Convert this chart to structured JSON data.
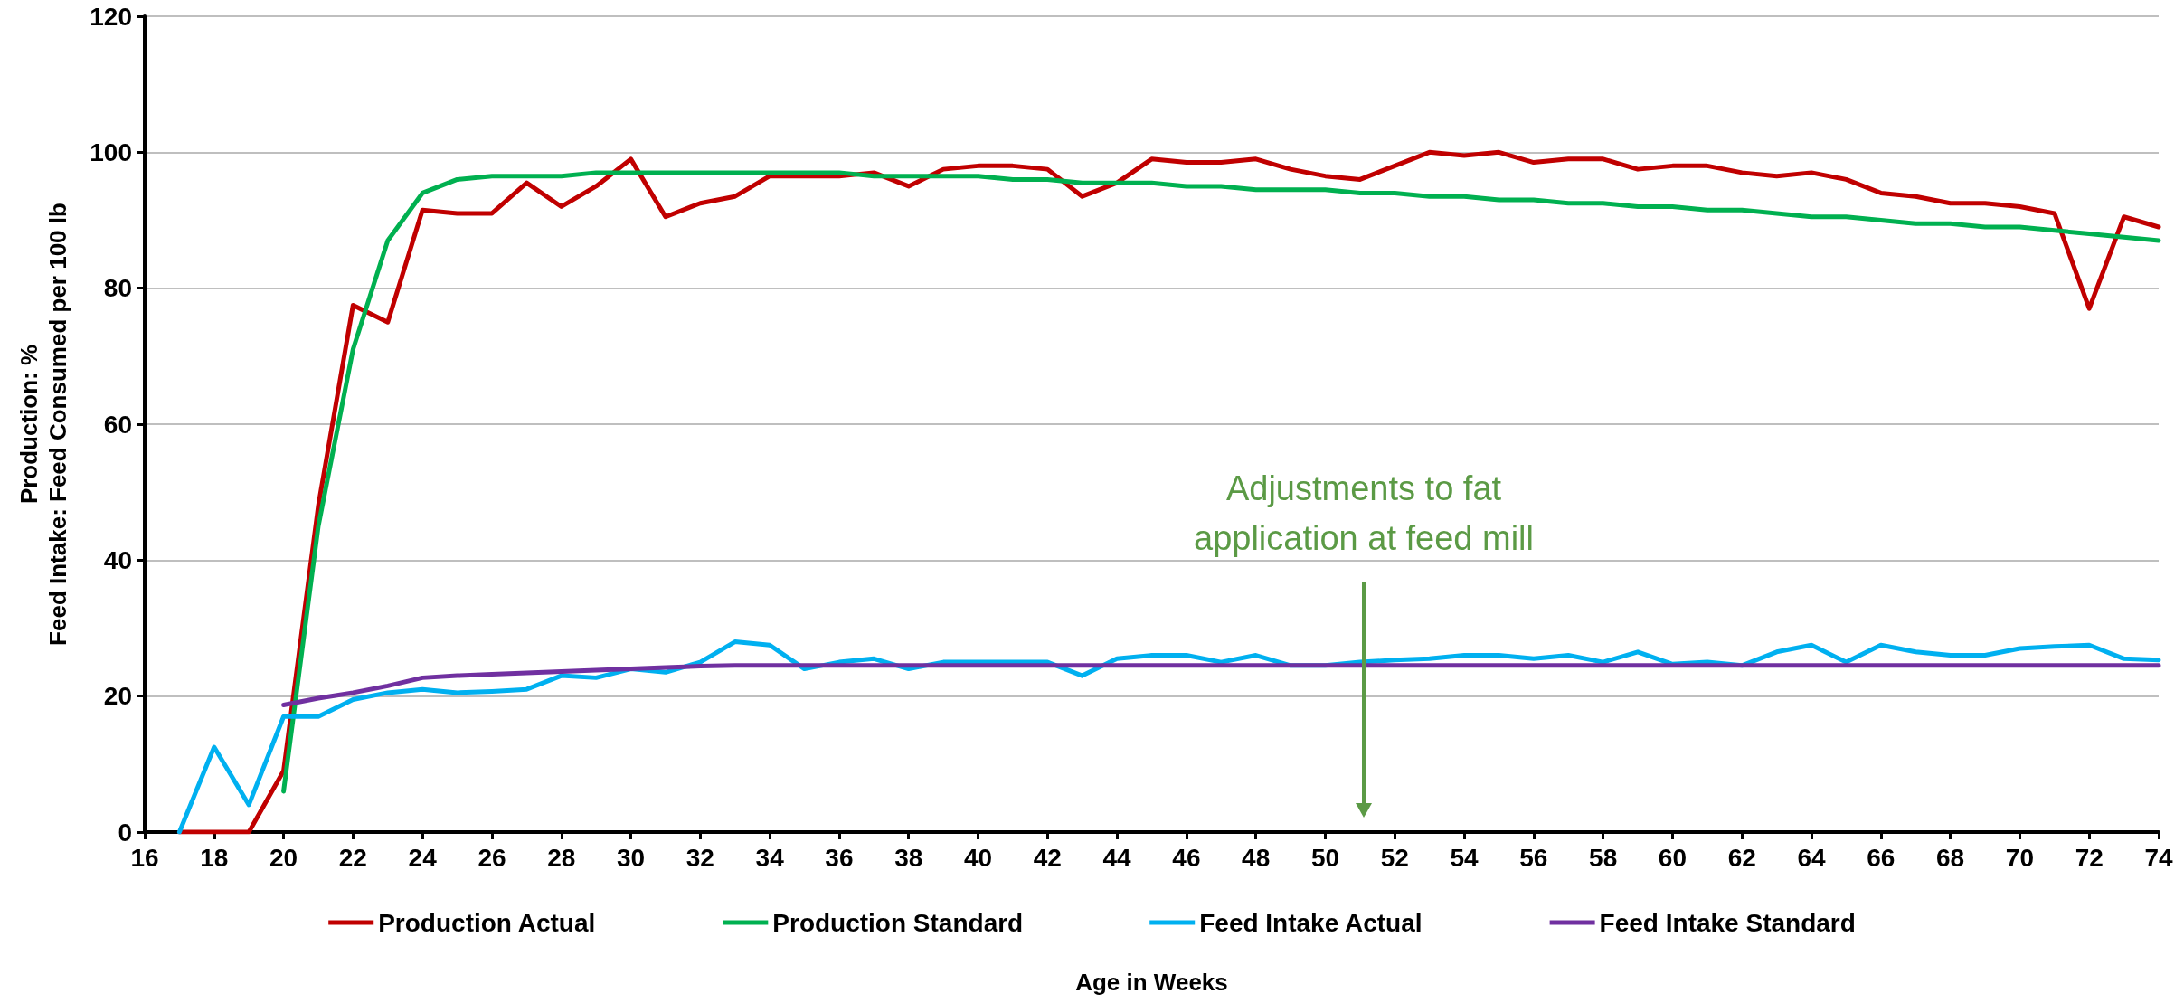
{
  "chart_data": {
    "type": "line",
    "xlabel": "Age in Weeks",
    "ylabel": "Production: %\nFeed Intake: Feed Consumed per 100 lb",
    "xlim": [
      16,
      74
    ],
    "xticks": [
      16,
      18,
      20,
      22,
      24,
      26,
      28,
      30,
      32,
      34,
      36,
      38,
      40,
      42,
      44,
      46,
      48,
      50,
      52,
      54,
      56,
      58,
      60,
      62,
      64,
      66,
      68,
      70,
      72,
      74
    ],
    "ylim": [
      0,
      120
    ],
    "yticks": [
      0,
      20,
      40,
      60,
      80,
      100,
      120
    ],
    "grid": "y",
    "legend": "bottom",
    "marker": "none",
    "line_style": "solid",
    "annotations": [
      "Adjustments to fat application at feed mill"
    ],
    "series": [
      {
        "name": "Production Actual",
        "color": "#c00000",
        "x": [
          17,
          18,
          19,
          20,
          21,
          22,
          23,
          24,
          25,
          26,
          27,
          28,
          29,
          30,
          31,
          32,
          33,
          34,
          35,
          36,
          37,
          38,
          39,
          40,
          41,
          42,
          43,
          44,
          45,
          46,
          47,
          48,
          49,
          50,
          51,
          52,
          53,
          54,
          55,
          56,
          57,
          58,
          59,
          60,
          61,
          62,
          63,
          64,
          65,
          66,
          67,
          68,
          69,
          70,
          71,
          72,
          73,
          74
        ],
        "values": [
          0,
          0,
          0,
          9,
          48,
          77.5,
          75,
          91.5,
          91,
          91,
          95.5,
          92,
          95,
          99,
          90.5,
          92.5,
          93.5,
          96.5,
          96.5,
          96.5,
          97,
          95,
          97.5,
          98,
          98,
          97.5,
          93.5,
          95.5,
          99,
          98.5,
          98.5,
          99,
          97.5,
          96.5,
          96,
          98,
          100,
          99.5,
          100,
          98.5,
          99,
          99,
          97.5,
          98,
          98,
          97,
          96.5,
          97,
          96,
          94,
          93.5,
          92.5,
          92.5,
          92,
          91,
          77,
          90.5,
          89
        ]
      },
      {
        "name": "Production Standard",
        "color": "#00b050",
        "x": [
          20,
          21,
          22,
          23,
          24,
          25,
          26,
          27,
          28,
          29,
          30,
          31,
          32,
          33,
          34,
          35,
          36,
          37,
          38,
          39,
          40,
          41,
          42,
          43,
          44,
          45,
          46,
          47,
          48,
          49,
          50,
          51,
          52,
          53,
          54,
          55,
          56,
          57,
          58,
          59,
          60,
          61,
          62,
          63,
          64,
          65,
          66,
          67,
          68,
          69,
          70,
          71,
          72,
          73,
          74
        ],
        "values": [
          6,
          45,
          71,
          87,
          94,
          96,
          96.5,
          96.5,
          96.5,
          97,
          97,
          97,
          97,
          97,
          97,
          97,
          97,
          96.5,
          96.5,
          96.5,
          96.5,
          96,
          96,
          95.5,
          95.5,
          95.5,
          95,
          95,
          94.5,
          94.5,
          94.5,
          94,
          94,
          93.5,
          93.5,
          93,
          93,
          92.5,
          92.5,
          92,
          92,
          91.5,
          91.5,
          91,
          90.5,
          90.5,
          90,
          89.5,
          89.5,
          89,
          89,
          88.5,
          88,
          87.5,
          87
        ]
      },
      {
        "name": "Feed Intake Actual",
        "color": "#00b0f0",
        "x": [
          17,
          18,
          19,
          20,
          21,
          22,
          23,
          24,
          25,
          26,
          27,
          28,
          29,
          30,
          31,
          32,
          33,
          34,
          35,
          36,
          37,
          38,
          39,
          40,
          41,
          42,
          43,
          44,
          45,
          46,
          47,
          48,
          49,
          50,
          51,
          52,
          53,
          54,
          55,
          56,
          57,
          58,
          59,
          60,
          61,
          62,
          63,
          64,
          65,
          66,
          67,
          68,
          69,
          70,
          71,
          72,
          73,
          74
        ],
        "values": [
          0,
          12.5,
          4,
          17,
          17,
          19.5,
          20.5,
          21,
          20.5,
          20.7,
          21,
          23,
          22.7,
          24,
          23.5,
          25,
          28,
          27.5,
          24,
          25,
          25.5,
          24,
          25,
          25,
          25,
          25,
          23,
          25.5,
          26,
          26,
          25,
          26,
          24.5,
          24.5,
          25,
          25.3,
          25.5,
          26,
          26,
          25.5,
          26,
          25,
          26.5,
          24.7,
          25,
          24.5,
          26.5,
          27.5,
          25,
          27.5,
          26.5,
          26,
          26,
          27,
          27.3,
          27.5,
          25.5,
          25.3
        ]
      },
      {
        "name": "Feed Intake Standard",
        "color": "#7030a0",
        "x": [
          20,
          21,
          22,
          23,
          24,
          25,
          26,
          27,
          28,
          29,
          30,
          31,
          32,
          33,
          34,
          35,
          36,
          37,
          38,
          39,
          40,
          41,
          42,
          43,
          44,
          45,
          46,
          47,
          48,
          49,
          50,
          51,
          52,
          53,
          54,
          55,
          56,
          57,
          58,
          59,
          60,
          61,
          62,
          63,
          64,
          65,
          66,
          67,
          68,
          69,
          70,
          71,
          72,
          73,
          74
        ],
        "values": [
          18.7,
          19.7,
          20.5,
          21.5,
          22.7,
          23,
          23.2,
          23.4,
          23.6,
          23.8,
          24,
          24.2,
          24.4,
          24.5,
          24.5,
          24.5,
          24.5,
          24.5,
          24.5,
          24.5,
          24.5,
          24.5,
          24.5,
          24.5,
          24.5,
          24.5,
          24.5,
          24.5,
          24.5,
          24.5,
          24.5,
          24.5,
          24.5,
          24.5,
          24.5,
          24.5,
          24.5,
          24.5,
          24.5,
          24.5,
          24.5,
          24.5,
          24.5,
          24.5,
          24.5,
          24.5,
          24.5,
          24.5,
          24.5,
          24.5,
          24.5,
          24.5,
          24.5,
          24.5,
          24.5
        ]
      }
    ]
  }
}
